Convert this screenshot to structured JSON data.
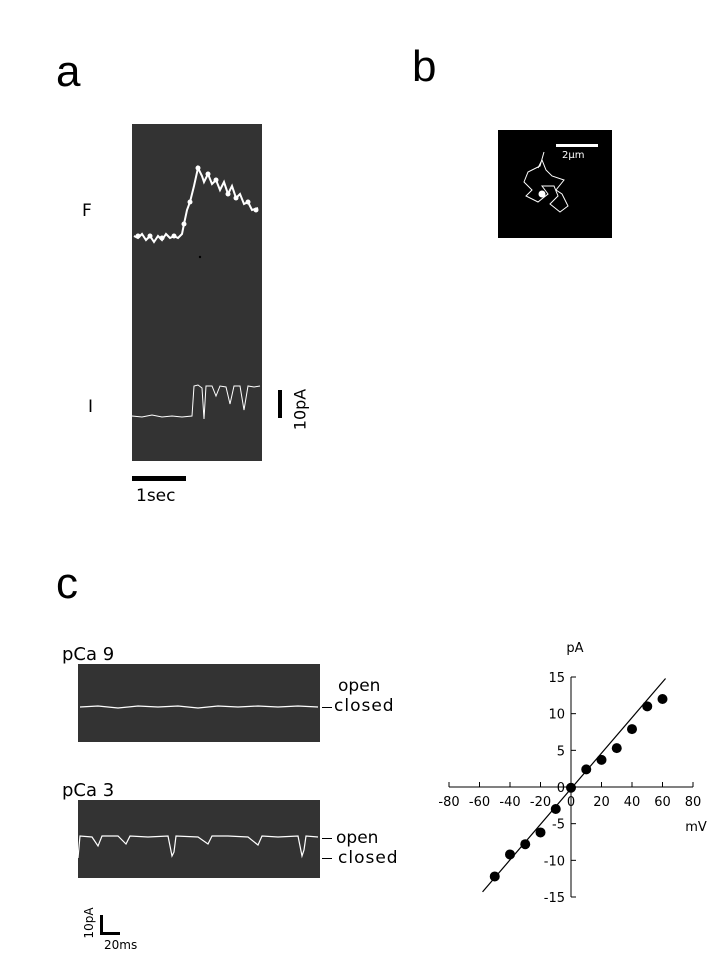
{
  "panels": {
    "a": {
      "letter": "a",
      "f_label": "F",
      "i_label": "I",
      "scale_current": "10pA",
      "scale_time": "1sec"
    },
    "b": {
      "letter": "b",
      "scale": "2μm"
    },
    "c": {
      "letter": "c",
      "trace1": {
        "title": "pCa 9",
        "open": "open",
        "closed": "closed"
      },
      "trace2": {
        "title": "pCa 3",
        "open": "open",
        "closed": "closed"
      },
      "scale_current": "10pA",
      "scale_time": "20ms"
    }
  },
  "chart_data": {
    "type": "scatter",
    "ylabel": "pA",
    "xlabel": "mV",
    "xlim": [
      -80,
      80
    ],
    "ylim": [
      -15,
      15
    ],
    "xticks": [
      -80,
      -60,
      -40,
      -20,
      0,
      20,
      40,
      60,
      80
    ],
    "yticks": [
      15,
      10,
      5,
      0,
      -5,
      -10,
      -15
    ],
    "xtick_labels": [
      "-80",
      "-60",
      "-40",
      "-20",
      "0",
      "20",
      "40",
      "60",
      "80"
    ],
    "ytick_labels": [
      "15",
      "10",
      "5",
      "0",
      "-5",
      "-10",
      "-15"
    ],
    "points": [
      {
        "x": -50,
        "y": -12.2
      },
      {
        "x": -40,
        "y": -9.2
      },
      {
        "x": -30,
        "y": -7.8
      },
      {
        "x": -20,
        "y": -6.2
      },
      {
        "x": -10,
        "y": -3.0
      },
      {
        "x": 0,
        "y": -0.1
      },
      {
        "x": 10,
        "y": 2.4
      },
      {
        "x": 20,
        "y": 3.7
      },
      {
        "x": 30,
        "y": 5.3
      },
      {
        "x": 40,
        "y": 7.9
      },
      {
        "x": 50,
        "y": 11.0
      },
      {
        "x": 60,
        "y": 12.0
      }
    ],
    "fit_line": {
      "x": [
        -58,
        62
      ],
      "y": [
        -14.3,
        14.8
      ]
    }
  }
}
